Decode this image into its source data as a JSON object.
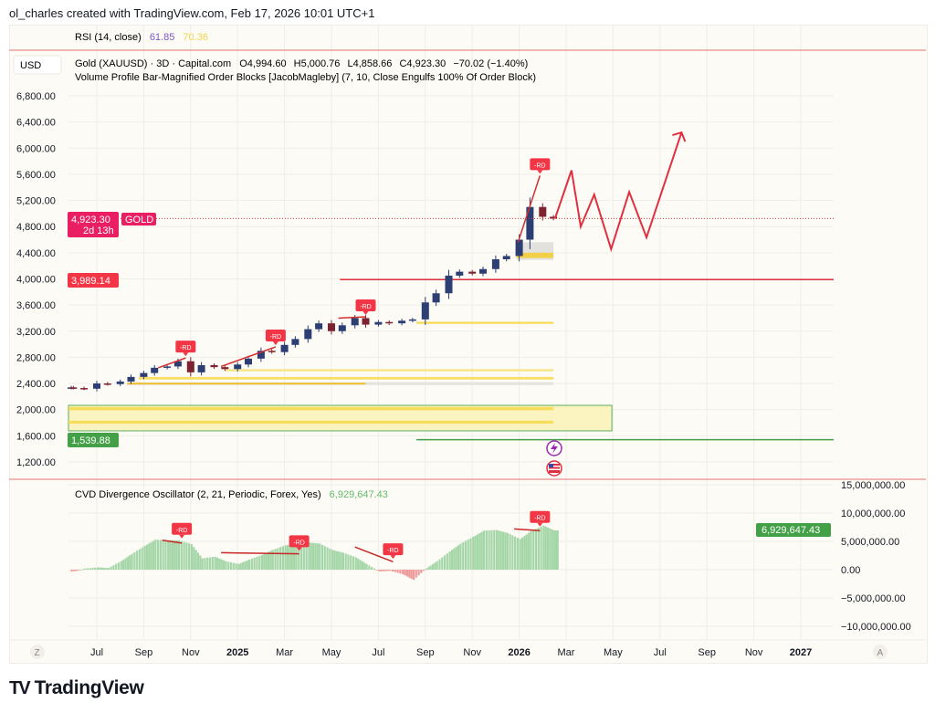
{
  "header": {
    "attribution": "ol_charles created with TradingView.com, Feb 17, 2026 10:01 UTC+1"
  },
  "rsi": {
    "label": "RSI (14, close)",
    "value": "61.85",
    "signal": "70.36",
    "value_color": "#7e57c2",
    "signal_color": "#f2d44c"
  },
  "legend": {
    "currency": "USD",
    "symbol": "Gold (XAUUSD) · 3D · Capital.com",
    "open": "O4,994.60",
    "high": "H5,000.76",
    "low": "L4,858.66",
    "close": "C4,923.30",
    "change": "−70.02 (−1.40%)",
    "indicator": "Volume Profile Bar-Magnified Order Blocks [JacobMagleby] (7, 10, Close Engulfs 100% Of Order Block)"
  },
  "price_labels": {
    "last_price": "4,923.30",
    "countdown": "2d 13h",
    "symbol_tag": "GOLD",
    "red_level": "3,989.14",
    "green_level": "1,539.88"
  },
  "cvd": {
    "label": "CVD Divergence Oscillator (2, 21, Periodic, Forex, Yes)",
    "value": "6,929,647.43"
  },
  "time_axis": {
    "left_button": "Z",
    "right_button": "A"
  },
  "footer": {
    "logo_mark": "TV",
    "logo_text": "TradingView"
  },
  "colors": {
    "up": "#2c3e73",
    "down": "#7d2230",
    "accent_red": "#e0303f",
    "green": "#43a047",
    "cvd_pos": "#a5d6a7",
    "cvd_neg": "#ef9a9a",
    "zone_yellow": "#f7d84a",
    "zone_orange": "#f5b700"
  },
  "chart_data": [
    {
      "type": "candlestick",
      "title": "Gold (XAUUSD) · 3D · Capital.com",
      "x": [
        "2024-05-15",
        "2024-06-01",
        "2024-06-15",
        "2024-07-01",
        "2024-07-15",
        "2024-08-01",
        "2024-08-15",
        "2024-09-01",
        "2024-09-15",
        "2024-10-01",
        "2024-10-15",
        "2024-11-01",
        "2024-11-15",
        "2024-12-01",
        "2024-12-15",
        "2025-01-01",
        "2025-01-15",
        "2025-02-01",
        "2025-02-15",
        "2025-03-01",
        "2025-03-15",
        "2025-04-01",
        "2025-04-15",
        "2025-05-01",
        "2025-05-15",
        "2025-06-01",
        "2025-06-15",
        "2025-07-01",
        "2025-07-15",
        "2025-08-01",
        "2025-08-15",
        "2025-09-01",
        "2025-09-15",
        "2025-10-01",
        "2025-10-15",
        "2025-11-01",
        "2025-11-15",
        "2025-12-01",
        "2025-12-15",
        "2026-01-01",
        "2026-01-15",
        "2026-02-01",
        "2026-02-15"
      ],
      "close": [
        2340,
        2330,
        2320,
        2400,
        2390,
        2430,
        2500,
        2560,
        2640,
        2660,
        2740,
        2570,
        2680,
        2650,
        2620,
        2690,
        2780,
        2900,
        2880,
        2990,
        3080,
        3230,
        3320,
        3200,
        3290,
        3400,
        3300,
        3340,
        3320,
        3360,
        3380,
        3640,
        3780,
        4050,
        4110,
        4080,
        4150,
        4300,
        4350,
        4600,
        5100,
        4950,
        4923.3
      ],
      "y_ticks": [
        1200,
        1600,
        2000,
        2400,
        2800,
        3200,
        3600,
        4000,
        4400,
        4800,
        5200,
        5600,
        6000,
        6400,
        6800
      ],
      "y_tick_labels": [
        "1,200.00",
        "1,600.00",
        "2,000.00",
        "2,400.00",
        "2,800.00",
        "3,200.00",
        "3,600.00",
        "4,000.00",
        "4,400.00",
        "4,800.00",
        "5,200.00",
        "5,600.00",
        "6,000.00",
        "6,400.00",
        "6,800.00"
      ],
      "ylim": [
        1100,
        7000
      ],
      "x_tick_dates": [
        "2024-07-01",
        "2024-09-01",
        "2024-11-01",
        "2025-01-01",
        "2025-03-01",
        "2025-05-01",
        "2025-07-01",
        "2025-09-01",
        "2025-11-01",
        "2026-01-01",
        "2026-03-01",
        "2026-05-01",
        "2026-07-01",
        "2026-09-01",
        "2026-11-01",
        "2027-01-01"
      ],
      "x_tick_labels": [
        "Jul",
        "Sep",
        "Nov",
        "2025",
        "Mar",
        "May",
        "Jul",
        "Sep",
        "Nov",
        "2026",
        "Mar",
        "May",
        "Jul",
        "Sep",
        "Nov",
        "2027"
      ],
      "last_price": 4923.3,
      "levels": [
        {
          "name": "resistance",
          "price": 3989.14,
          "from": "2025-05-12",
          "to": "2026-11-30",
          "color": "#e0303f"
        },
        {
          "name": "support",
          "price": 1539.88,
          "from": "2025-08-20",
          "to": "2026-11-30",
          "color": "#43a047"
        }
      ],
      "zones": [
        {
          "kind": "box",
          "low": 1675,
          "high": 2065,
          "from": "2024-05-15",
          "to": "2026-04-30",
          "fill": "#fbf4c0",
          "stroke": "#5cae5c"
        },
        {
          "kind": "band",
          "low": 1990,
          "high": 2040,
          "from": "2024-05-15",
          "to": "2026-02-15",
          "fill": "#f7d84a"
        },
        {
          "kind": "band",
          "low": 1785,
          "high": 1830,
          "from": "2024-05-15",
          "to": "2026-02-15",
          "fill": "#f7d84a"
        },
        {
          "kind": "band",
          "low": 2375,
          "high": 2420,
          "from": "2024-08-10",
          "to": "2026-02-15",
          "fill": "#e3e1dc"
        },
        {
          "kind": "band",
          "low": 2385,
          "high": 2410,
          "from": "2024-08-10",
          "to": "2025-06-15",
          "fill": "#f5b700"
        },
        {
          "kind": "band",
          "low": 2460,
          "high": 2500,
          "from": "2024-08-25",
          "to": "2026-02-15",
          "fill": "#f7d84a"
        },
        {
          "kind": "band",
          "low": 2585,
          "high": 2620,
          "from": "2024-12-15",
          "to": "2026-02-15",
          "fill": "#f7e27a"
        },
        {
          "kind": "band",
          "low": 3310,
          "high": 3345,
          "from": "2025-08-20",
          "to": "2026-02-15",
          "fill": "#f7d84a"
        },
        {
          "kind": "band",
          "low": 4290,
          "high": 4560,
          "from": "2025-12-28",
          "to": "2026-02-15",
          "fill": "#dedcd8"
        },
        {
          "kind": "band",
          "low": 4320,
          "high": 4400,
          "from": "2025-12-28",
          "to": "2026-02-15",
          "fill": "#f5cc2a"
        }
      ],
      "divergence_lines": [
        {
          "from": [
            "2024-09-20",
            2640
          ],
          "to": [
            "2024-10-25",
            2790
          ]
        },
        {
          "from": [
            "2024-12-10",
            2660
          ],
          "to": [
            "2025-02-20",
            2960
          ]
        },
        {
          "from": [
            "2025-05-10",
            3400
          ],
          "to": [
            "2025-06-15",
            3420
          ]
        },
        {
          "from": [
            "2025-12-30",
            4560
          ],
          "to": [
            "2026-01-28",
            5580
          ]
        }
      ],
      "annotations": [
        {
          "text": "-RD",
          "date": "2024-10-25",
          "price": 2790
        },
        {
          "text": "-RD",
          "date": "2025-02-20",
          "price": 2960
        },
        {
          "text": "-RD",
          "date": "2025-06-15",
          "price": 3420
        },
        {
          "text": "-RD",
          "date": "2026-01-28",
          "price": 5580
        }
      ],
      "projection": [
        [
          "2026-02-17",
          4923
        ],
        [
          "2026-03-08",
          5660
        ],
        [
          "2026-03-20",
          4800
        ],
        [
          "2026-04-07",
          5290
        ],
        [
          "2026-04-29",
          4455
        ],
        [
          "2026-05-22",
          5330
        ],
        [
          "2026-06-14",
          4635
        ],
        [
          "2026-07-29",
          6240
        ]
      ],
      "event_icons": [
        "lightning-icon",
        "us-flag-icon"
      ]
    },
    {
      "type": "bar",
      "title": "CVD Divergence Oscillator (2, 21, Periodic, Forex, Yes)",
      "x_ref": "same dates as candlestick",
      "values_millions": [
        -0.5,
        -0.3,
        0.2,
        0.4,
        0.3,
        1.5,
        2.8,
        4.2,
        5.3,
        5.2,
        5.2,
        4.5,
        2.0,
        2.3,
        1.5,
        1.0,
        1.8,
        2.6,
        3.5,
        4.3,
        4.5,
        4.8,
        4.6,
        3.5,
        3.0,
        2.2,
        1.0,
        -0.3,
        -0.2,
        -0.8,
        -1.8,
        0.2,
        1.5,
        3.2,
        4.6,
        5.8,
        6.9,
        7.0,
        6.5,
        5.4,
        6.8,
        7.8,
        6.93
      ],
      "last_value": 6929647.43,
      "y_ticks": [
        15,
        10,
        5,
        0,
        -5,
        -10
      ],
      "y_tick_labels": [
        "15,000,000.00",
        "10,000,000.00",
        "5,000,000.00",
        "0.00",
        "−5,000,000.00",
        "−10,000,000.00"
      ],
      "divergence_lines": [
        {
          "from": [
            "2024-09-25",
            5.2
          ],
          "to": [
            "2024-10-20",
            4.7
          ]
        },
        {
          "from": [
            "2024-12-10",
            3.0
          ],
          "to": [
            "2025-03-20",
            2.8
          ]
        },
        {
          "from": [
            "2025-06-01",
            4.0
          ],
          "to": [
            "2025-07-20",
            1.4
          ]
        },
        {
          "from": [
            "2025-12-25",
            7.2
          ],
          "to": [
            "2026-01-28",
            6.9
          ]
        }
      ],
      "annotations": [
        {
          "text": "-RD",
          "date": "2024-10-20",
          "value": 5.2
        },
        {
          "text": "-RD",
          "date": "2025-03-20",
          "value": 3.0
        },
        {
          "text": "-RD",
          "date": "2025-07-20",
          "value": 1.6
        },
        {
          "text": "-RD",
          "date": "2026-01-28",
          "value": 7.3
        }
      ]
    }
  ]
}
